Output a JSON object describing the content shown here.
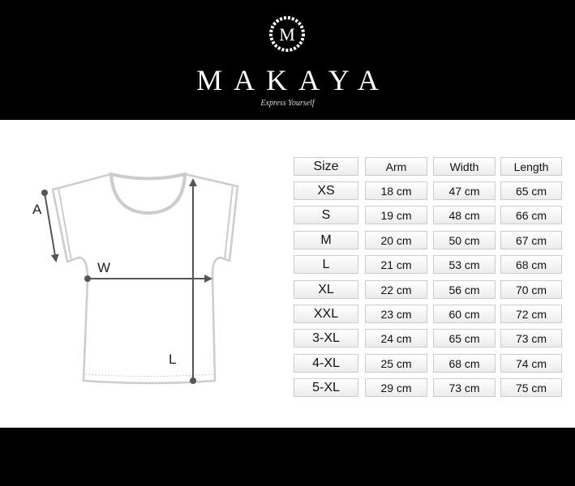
{
  "brand": {
    "logo_letter": "M",
    "name": "MAKAYA",
    "tagline": "Express Yourself"
  },
  "diagram": {
    "arm_label": "A",
    "width_label": "W",
    "length_label": "L"
  },
  "table": {
    "headers": [
      "Size",
      "Arm",
      "Width",
      "Length"
    ],
    "rows": [
      [
        "XS",
        "18 cm",
        "47 cm",
        "65 cm"
      ],
      [
        "S",
        "19 cm",
        "48 cm",
        "66 cm"
      ],
      [
        "M",
        "20 cm",
        "50 cm",
        "67 cm"
      ],
      [
        "L",
        "21 cm",
        "53 cm",
        "68 cm"
      ],
      [
        "XL",
        "22 cm",
        "56 cm",
        "70 cm"
      ],
      [
        "XXL",
        "23 cm",
        "60 cm",
        "72 cm"
      ],
      [
        "3-XL",
        "24 cm",
        "65 cm",
        "73 cm"
      ],
      [
        "4-XL",
        "25 cm",
        "68 cm",
        "74 cm"
      ],
      [
        "5-XL",
        "29 cm",
        "73 cm",
        "75 cm"
      ]
    ]
  }
}
